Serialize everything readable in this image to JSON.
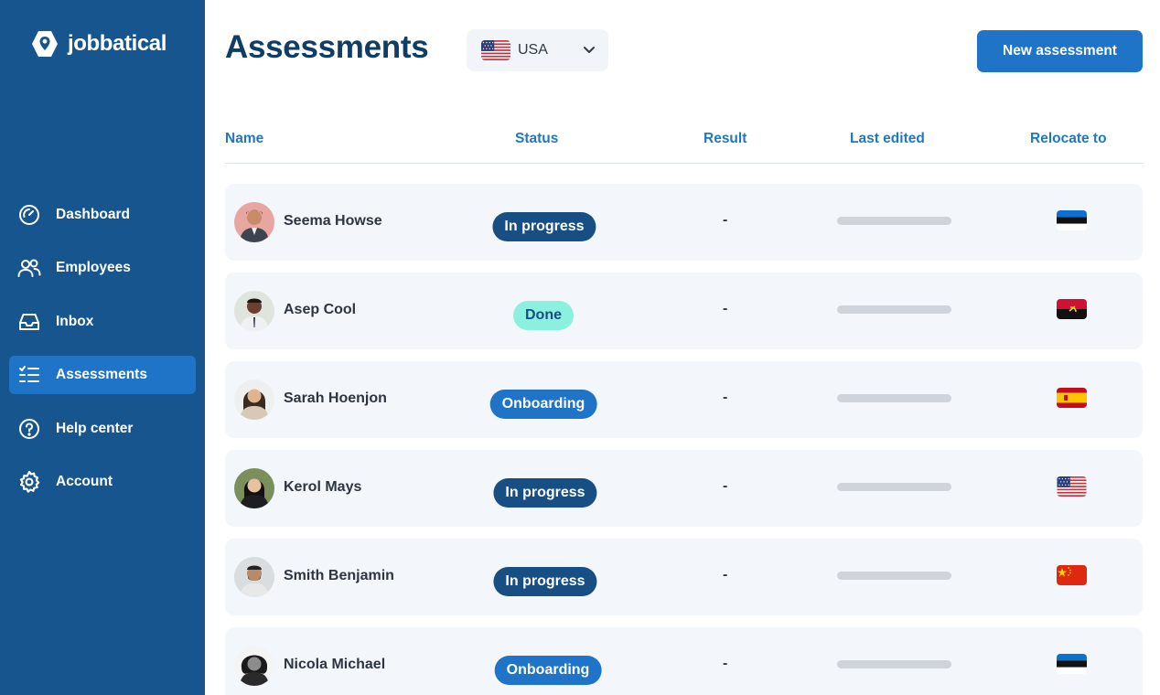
{
  "app": {
    "name": "jobbatical"
  },
  "sidebar": {
    "items": [
      {
        "label": "Dashboard",
        "icon": "dashboard-icon",
        "active": false
      },
      {
        "label": "Employees",
        "icon": "users-icon",
        "active": false
      },
      {
        "label": "Inbox",
        "icon": "inbox-icon",
        "active": false
      },
      {
        "label": "Assessments",
        "icon": "checklist-icon",
        "active": true
      },
      {
        "label": "Help center",
        "icon": "help-icon",
        "active": false
      },
      {
        "label": "Account",
        "icon": "gear-icon",
        "active": false
      }
    ]
  },
  "header": {
    "title": "Assessments",
    "country": {
      "label": "USA",
      "flag": "us-flag-icon"
    },
    "new_button": "New assessment"
  },
  "table": {
    "columns": [
      "Name",
      "Status",
      "Result",
      "Last edited",
      "Relocate to"
    ],
    "rows": [
      {
        "name": "Seema Howse",
        "status": "In progress",
        "status_type": "progress",
        "result": "-",
        "relocate_flag": "estonia-flag-icon"
      },
      {
        "name": "Asep Cool",
        "status": "Done",
        "status_type": "done",
        "result": "-",
        "relocate_flag": "angola-flag-icon"
      },
      {
        "name": "Sarah Hoenjon",
        "status": "Onboarding",
        "status_type": "onboarding",
        "result": "-",
        "relocate_flag": "spain-flag-icon"
      },
      {
        "name": "Kerol Mays",
        "status": "In progress",
        "status_type": "progress",
        "result": "-",
        "relocate_flag": "us-flag-icon"
      },
      {
        "name": "Smith Benjamin",
        "status": "In progress",
        "status_type": "progress",
        "result": "-",
        "relocate_flag": "china-flag-icon"
      },
      {
        "name": "Nicola Michael",
        "status": "Onboarding",
        "status_type": "onboarding",
        "result": "-",
        "relocate_flag": "estonia-flag-icon"
      }
    ]
  },
  "colors": {
    "sidebar": "#17558f",
    "accent": "#1f74c7",
    "title": "#0f3d66",
    "pill_progress": "#174f84",
    "pill_done": "#8cf0df",
    "row_bg": "#f3f6fb"
  }
}
